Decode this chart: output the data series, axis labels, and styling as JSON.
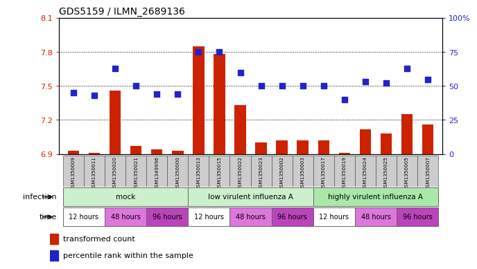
{
  "title": "GDS5159 / ILMN_2689136",
  "samples": [
    "GSM1350009",
    "GSM1350011",
    "GSM1350020",
    "GSM1350021",
    "GSM1349996",
    "GSM1350000",
    "GSM1350013",
    "GSM1350015",
    "GSM1350022",
    "GSM1350023",
    "GSM1350002",
    "GSM1350003",
    "GSM1350017",
    "GSM1350019",
    "GSM1350024",
    "GSM1350025",
    "GSM1350005",
    "GSM1350007"
  ],
  "transformed_count": [
    6.93,
    6.91,
    7.46,
    6.97,
    6.94,
    6.93,
    7.85,
    7.78,
    7.33,
    7.0,
    7.02,
    7.02,
    7.02,
    6.91,
    7.12,
    7.08,
    7.25,
    7.16
  ],
  "percentile_rank": [
    45,
    43,
    63,
    50,
    44,
    44,
    75,
    75,
    60,
    50,
    50,
    50,
    50,
    40,
    53,
    52,
    63,
    55
  ],
  "bar_color": "#cc2200",
  "dot_color": "#2222cc",
  "ylim_left": [
    6.9,
    8.1
  ],
  "ylim_right": [
    0,
    100
  ],
  "yticks_left": [
    6.9,
    7.2,
    7.5,
    7.8,
    8.1
  ],
  "yticks_right": [
    0,
    25,
    50,
    75,
    100
  ],
  "ytick_labels_left": [
    "6.9",
    "7.2",
    "7.5",
    "7.8",
    "8.1"
  ],
  "ytick_labels_right": [
    "0",
    "25",
    "50",
    "75",
    "100%"
  ],
  "infection_groups": [
    {
      "label": "mock",
      "start": 0,
      "end": 5,
      "color": "#ccf0cc"
    },
    {
      "label": "low virulent influenza A",
      "start": 6,
      "end": 11,
      "color": "#ccf0cc"
    },
    {
      "label": "highly virulent influenza A",
      "start": 12,
      "end": 17,
      "color": "#aae8aa"
    }
  ],
  "time_groups": [
    {
      "label": "12 hours",
      "start": 0,
      "end": 1,
      "color": "#ffffff"
    },
    {
      "label": "48 hours",
      "start": 2,
      "end": 3,
      "color": "#dd77dd"
    },
    {
      "label": "96 hours",
      "start": 4,
      "end": 5,
      "color": "#bb44bb"
    },
    {
      "label": "12 hours",
      "start": 6,
      "end": 7,
      "color": "#ffffff"
    },
    {
      "label": "48 hours",
      "start": 8,
      "end": 9,
      "color": "#dd77dd"
    },
    {
      "label": "96 hours",
      "start": 10,
      "end": 11,
      "color": "#bb44bb"
    },
    {
      "label": "12 hours",
      "start": 12,
      "end": 13,
      "color": "#ffffff"
    },
    {
      "label": "48 hours",
      "start": 14,
      "end": 15,
      "color": "#dd77dd"
    },
    {
      "label": "96 hours",
      "start": 16,
      "end": 17,
      "color": "#bb44bb"
    }
  ],
  "infection_label": "infection",
  "time_label": "time",
  "bg_color": "#ffffff",
  "bar_width": 0.55,
  "dot_size": 28
}
